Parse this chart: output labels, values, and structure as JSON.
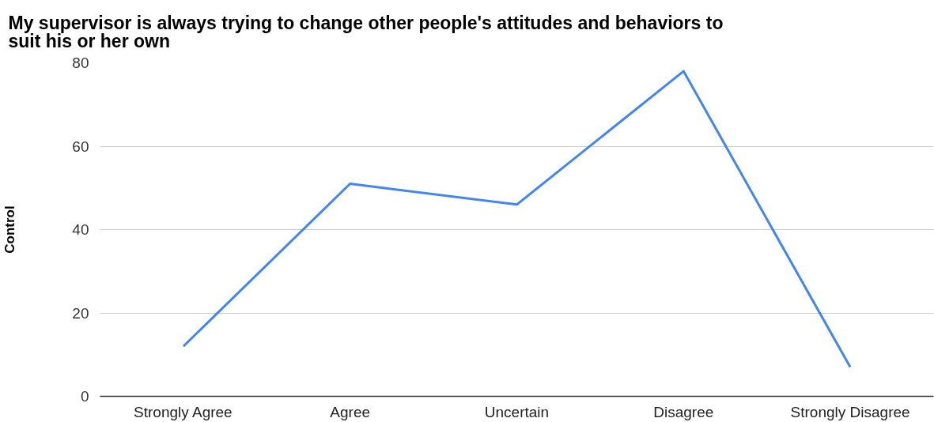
{
  "chart_data": {
    "type": "line",
    "title": "My supervisor is always trying to change other people's attitudes and behaviors to suit his or her own",
    "ylabel": "Control",
    "categories": [
      "Strongly Agree",
      "Agree",
      "Uncertain",
      "Disagree",
      "Strongly Disagree"
    ],
    "values": [
      12,
      51,
      46,
      78,
      7
    ],
    "color": "#4285f4",
    "ylim": [
      0,
      80
    ],
    "yticks": [
      0,
      20,
      40,
      60,
      80
    ],
    "grid": "y"
  }
}
